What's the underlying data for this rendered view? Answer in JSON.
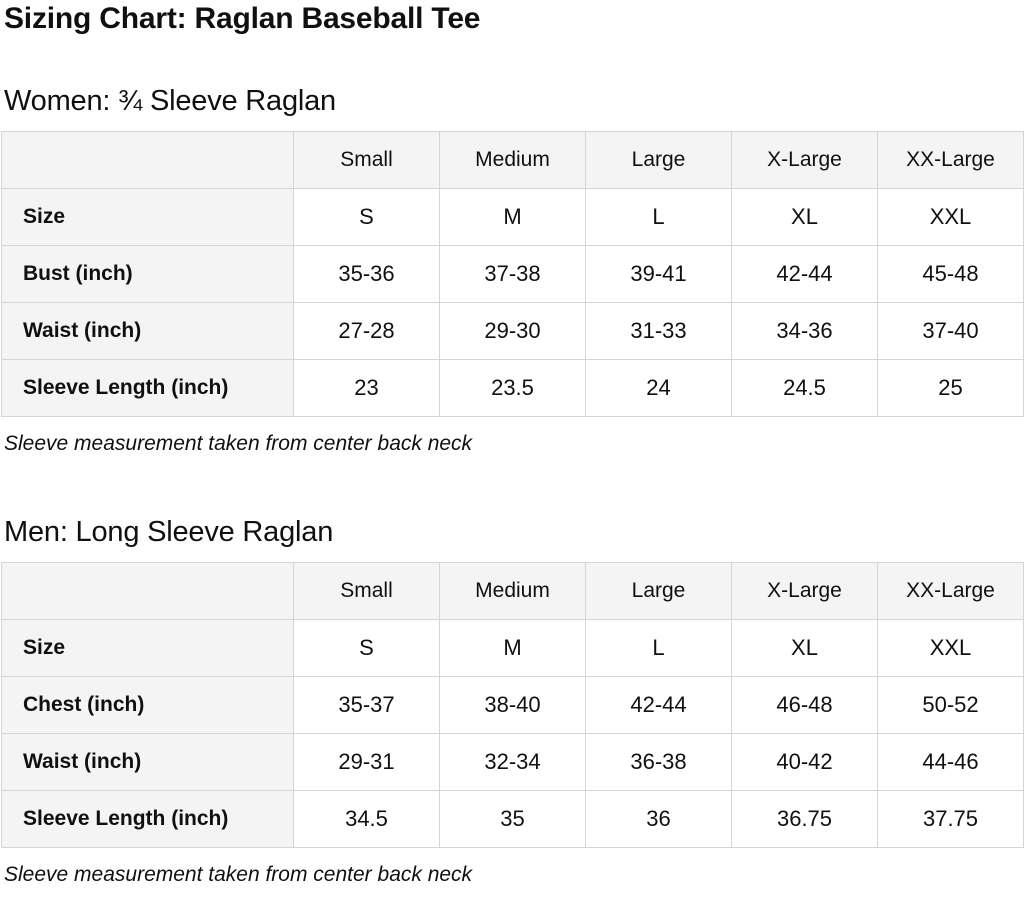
{
  "page": {
    "title": "Sizing Chart: Raglan Baseball Tee"
  },
  "colors": {
    "text": "#0f1111",
    "table_border": "#d5d5d5",
    "header_and_label_bg": "#f4f4f4",
    "data_cell_bg": "#ffffff"
  },
  "tables": [
    {
      "section_title": "Women: ¾ Sleeve Raglan",
      "columns": [
        "Small",
        "Medium",
        "Large",
        "X-Large",
        "XX-Large"
      ],
      "rows": [
        {
          "label": "Size",
          "values": [
            "S",
            "M",
            "L",
            "XL",
            "XXL"
          ]
        },
        {
          "label": "Bust (inch)",
          "values": [
            "35-36",
            "37-38",
            "39-41",
            "42-44",
            "45-48"
          ]
        },
        {
          "label": "Waist (inch)",
          "values": [
            "27-28",
            "29-30",
            "31-33",
            "34-36",
            "37-40"
          ]
        },
        {
          "label": "Sleeve Length (inch)",
          "values": [
            "23",
            "23.5",
            "24",
            "24.5",
            "25"
          ]
        }
      ],
      "note": "Sleeve measurement taken from center back neck"
    },
    {
      "section_title": "Men: Long Sleeve Raglan",
      "columns": [
        "Small",
        "Medium",
        "Large",
        "X-Large",
        "XX-Large"
      ],
      "rows": [
        {
          "label": "Size",
          "values": [
            "S",
            "M",
            "L",
            "XL",
            "XXL"
          ]
        },
        {
          "label": "Chest (inch)",
          "values": [
            "35-37",
            "38-40",
            "42-44",
            "46-48",
            "50-52"
          ]
        },
        {
          "label": "Waist (inch)",
          "values": [
            "29-31",
            "32-34",
            "36-38",
            "40-42",
            "44-46"
          ]
        },
        {
          "label": "Sleeve Length (inch)",
          "values": [
            "34.5",
            "35",
            "36",
            "36.75",
            "37.75"
          ]
        }
      ],
      "note": "Sleeve measurement taken from center back neck"
    }
  ]
}
